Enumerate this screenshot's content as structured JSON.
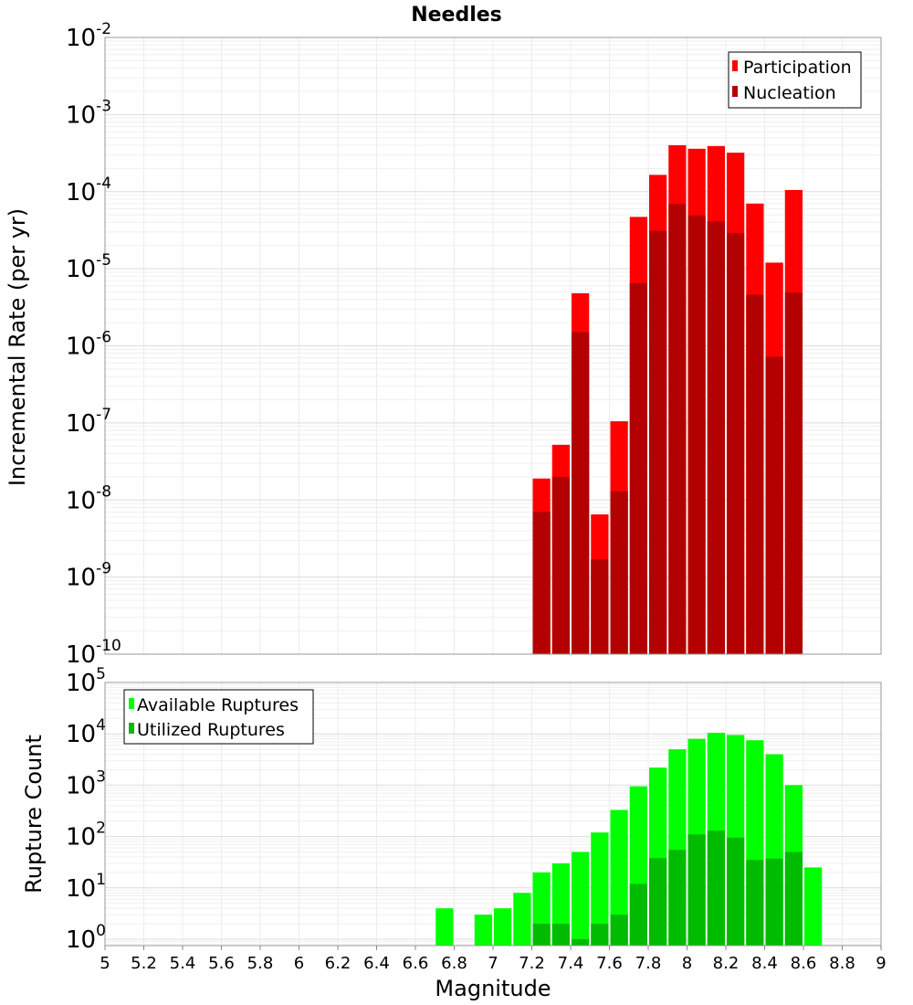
{
  "chart_data": [
    {
      "type": "bar",
      "title": "Needles",
      "ylabel": "Incremental Rate (per yr)",
      "xlabel": "",
      "ylog": true,
      "ylim": [
        1e-10,
        0.01
      ],
      "xlim": [
        5,
        9
      ],
      "ytick_exponents": [
        -10,
        -9,
        -8,
        -7,
        -6,
        -5,
        -4,
        -3,
        -2
      ],
      "grid": true,
      "legend_position": "top-right",
      "series": [
        {
          "name": "Participation",
          "color": "#ff0000",
          "x": [
            7.25,
            7.35,
            7.45,
            7.55,
            7.65,
            7.75,
            7.85,
            7.95,
            8.05,
            8.15,
            8.25,
            8.35,
            8.45,
            8.55
          ],
          "values": [
            1.9e-08,
            5.2e-08,
            4.8e-06,
            6.5e-09,
            1.05e-07,
            4.7e-05,
            0.000165,
            0.0004,
            0.00036,
            0.00039,
            0.00032,
            7e-05,
            1.2e-05,
            0.000105
          ]
        },
        {
          "name": "Nucleation",
          "color": "#b30000",
          "x": [
            7.25,
            7.35,
            7.45,
            7.55,
            7.65,
            7.75,
            7.85,
            7.95,
            8.05,
            8.15,
            8.25,
            8.35,
            8.45,
            8.55
          ],
          "values": [
            7e-09,
            2e-08,
            1.5e-06,
            1.7e-09,
            1.3e-08,
            6.5e-06,
            3.1e-05,
            6.9e-05,
            4.9e-05,
            4.1e-05,
            2.9e-05,
            4.6e-06,
            7.2e-07,
            4.9e-06
          ]
        }
      ]
    },
    {
      "type": "bar",
      "title": "",
      "ylabel": "Rupture Count",
      "xlabel": "Magnitude",
      "ylog": true,
      "ylim": [
        0.75,
        100000
      ],
      "xlim": [
        5,
        9
      ],
      "ytick_exponents": [
        0,
        1,
        2,
        3,
        4,
        5
      ],
      "xticks": [
        "5",
        "5.2",
        "5.4",
        "5.6",
        "5.8",
        "6",
        "6.2",
        "6.4",
        "6.6",
        "6.8",
        "7",
        "7.2",
        "7.4",
        "7.6",
        "7.8",
        "8",
        "8.2",
        "8.4",
        "8.6",
        "8.8",
        "9"
      ],
      "grid": true,
      "legend_position": "top-left",
      "series": [
        {
          "name": "Available Ruptures",
          "color": "#00ff00",
          "x": [
            6.75,
            6.95,
            7.05,
            7.15,
            7.25,
            7.35,
            7.45,
            7.55,
            7.65,
            7.75,
            7.85,
            7.95,
            8.05,
            8.15,
            8.25,
            8.35,
            8.45,
            8.55,
            8.65
          ],
          "values": [
            4,
            3,
            4,
            8,
            20,
            30,
            50,
            120,
            330,
            950,
            2200,
            5000,
            8000,
            10500,
            9500,
            7500,
            4000,
            1000,
            25
          ]
        },
        {
          "name": "Utilized Ruptures",
          "color": "#00bb00",
          "x": [
            7.25,
            7.35,
            7.45,
            7.55,
            7.65,
            7.75,
            7.85,
            7.95,
            8.05,
            8.15,
            8.25,
            8.35,
            8.45,
            8.55
          ],
          "values": [
            2,
            2,
            1,
            2,
            3,
            12,
            38,
            55,
            110,
            130,
            95,
            35,
            37,
            50
          ]
        }
      ]
    }
  ]
}
